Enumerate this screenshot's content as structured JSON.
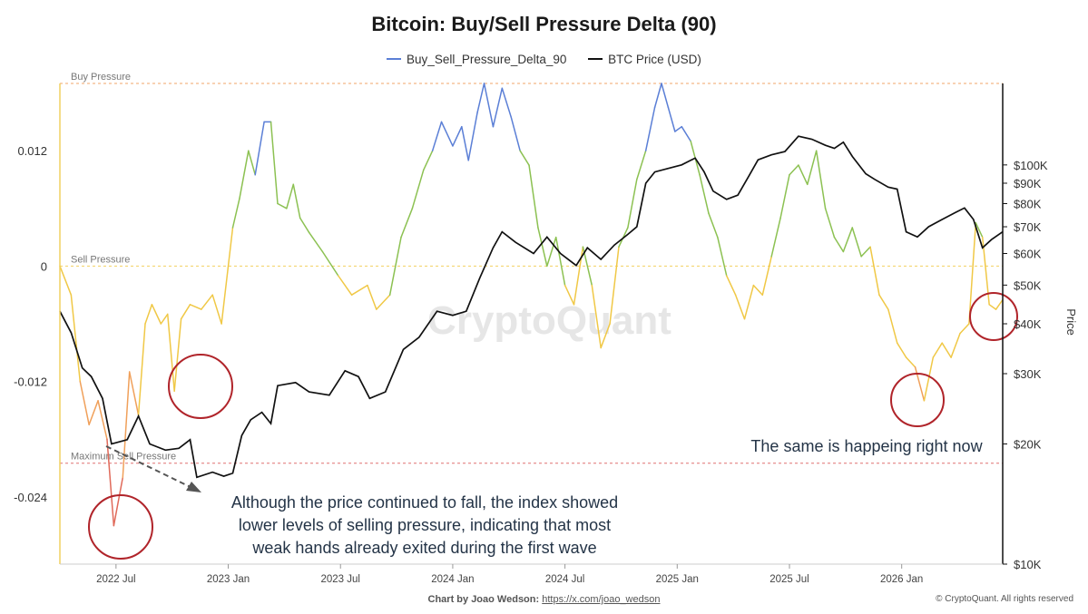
{
  "chart_data": {
    "type": "line",
    "title": "Bitcoin: Buy/Sell Pressure Delta (90)",
    "y_left": {
      "ticks": [
        0.012,
        0,
        -0.012,
        -0.024
      ],
      "tick_labels": [
        "0.012",
        "0",
        "-0.012",
        "-0.024"
      ],
      "range": [
        -0.031,
        0.019
      ]
    },
    "y_right": {
      "label": "Price",
      "scale": "log",
      "range": [
        10000,
        160000
      ],
      "ticks": [
        10000,
        20000,
        30000,
        40000,
        50000,
        60000,
        70000,
        80000,
        90000,
        100000
      ],
      "tick_labels": [
        "$10K",
        "$20K",
        "$30K",
        "$40K",
        "$50K",
        "$60K",
        "$70K",
        "$80K",
        "$90K",
        "$100K"
      ]
    },
    "x_ticks": [
      {
        "label": "2022 Jul",
        "t": 2022.5
      },
      {
        "label": "2023 Jan",
        "t": 2023.0
      },
      {
        "label": "2023 Jul",
        "t": 2023.5
      },
      {
        "label": "2024 Jan",
        "t": 2024.0
      },
      {
        "label": "2024 Jul",
        "t": 2024.5
      },
      {
        "label": "2025 Jan",
        "t": 2025.0
      },
      {
        "label": "2025 Jul",
        "t": 2025.5
      },
      {
        "label": "2026 Jan",
        "t": 2026.0
      }
    ],
    "x_range": [
      2022.25,
      2026.45
    ],
    "reference_lines": [
      {
        "label": "Buy Pressure",
        "value": 0.019
      },
      {
        "label": "Sell Pressure",
        "value": 0
      },
      {
        "label": "Maximum Sell Pressure",
        "value": -0.0205
      }
    ],
    "series": [
      {
        "name": "Buy_Sell_Pressure_Delta_90",
        "color": "#5b7fd6",
        "axis": "left",
        "points": [
          [
            2022.25,
            0
          ],
          [
            2022.3,
            -0.003
          ],
          [
            2022.34,
            -0.012
          ],
          [
            2022.38,
            -0.0165
          ],
          [
            2022.42,
            -0.014
          ],
          [
            2022.46,
            -0.018
          ],
          [
            2022.49,
            -0.027
          ],
          [
            2022.53,
            -0.022
          ],
          [
            2022.56,
            -0.011
          ],
          [
            2022.6,
            -0.0155
          ],
          [
            2022.63,
            -0.006
          ],
          [
            2022.66,
            -0.004
          ],
          [
            2022.7,
            -0.006
          ],
          [
            2022.73,
            -0.005
          ],
          [
            2022.76,
            -0.013
          ],
          [
            2022.79,
            -0.0055
          ],
          [
            2022.83,
            -0.004
          ],
          [
            2022.88,
            -0.0045
          ],
          [
            2022.93,
            -0.003
          ],
          [
            2022.97,
            -0.006
          ],
          [
            2023.02,
            0.004
          ],
          [
            2023.05,
            0.007
          ],
          [
            2023.09,
            0.012
          ],
          [
            2023.12,
            0.0095
          ],
          [
            2023.16,
            0.015
          ],
          [
            2023.19,
            0.015
          ],
          [
            2023.22,
            0.0065
          ],
          [
            2023.26,
            0.006
          ],
          [
            2023.29,
            0.0085
          ],
          [
            2023.32,
            0.005
          ],
          [
            2023.36,
            0.0035
          ],
          [
            2023.42,
            0.0015
          ],
          [
            2023.49,
            -0.001
          ],
          [
            2023.55,
            -0.003
          ],
          [
            2023.62,
            -0.002
          ],
          [
            2023.66,
            -0.0045
          ],
          [
            2023.72,
            -0.003
          ],
          [
            2023.77,
            0.003
          ],
          [
            2023.82,
            0.006
          ],
          [
            2023.87,
            0.01
          ],
          [
            2023.91,
            0.012
          ],
          [
            2023.95,
            0.015
          ],
          [
            2024.0,
            0.0125
          ],
          [
            2024.04,
            0.0145
          ],
          [
            2024.07,
            0.011
          ],
          [
            2024.11,
            0.016
          ],
          [
            2024.14,
            0.019
          ],
          [
            2024.18,
            0.0145
          ],
          [
            2024.22,
            0.0185
          ],
          [
            2024.26,
            0.0155
          ],
          [
            2024.3,
            0.012
          ],
          [
            2024.34,
            0.0105
          ],
          [
            2024.38,
            0.004
          ],
          [
            2024.42,
            0
          ],
          [
            2024.46,
            0.003
          ],
          [
            2024.5,
            -0.002
          ],
          [
            2024.54,
            -0.004
          ],
          [
            2024.58,
            0.002
          ],
          [
            2024.62,
            -0.002
          ],
          [
            2024.66,
            -0.0085
          ],
          [
            2024.7,
            -0.006
          ],
          [
            2024.74,
            0.002
          ],
          [
            2024.78,
            0.004
          ],
          [
            2024.82,
            0.009
          ],
          [
            2024.86,
            0.012
          ],
          [
            2024.9,
            0.0165
          ],
          [
            2024.93,
            0.019
          ],
          [
            2024.96,
            0.0165
          ],
          [
            2024.99,
            0.014
          ],
          [
            2025.02,
            0.0145
          ],
          [
            2025.06,
            0.013
          ],
          [
            2025.1,
            0.0095
          ],
          [
            2025.14,
            0.0055
          ],
          [
            2025.18,
            0.003
          ],
          [
            2025.22,
            -0.001
          ],
          [
            2025.26,
            -0.003
          ],
          [
            2025.3,
            -0.0055
          ],
          [
            2025.34,
            -0.002
          ],
          [
            2025.38,
            -0.003
          ],
          [
            2025.42,
            0.001
          ],
          [
            2025.46,
            0.005
          ],
          [
            2025.5,
            0.0095
          ],
          [
            2025.54,
            0.0105
          ],
          [
            2025.58,
            0.0085
          ],
          [
            2025.62,
            0.012
          ],
          [
            2025.66,
            0.006
          ],
          [
            2025.7,
            0.003
          ],
          [
            2025.74,
            0.0015
          ],
          [
            2025.78,
            0.004
          ],
          [
            2025.82,
            0.001
          ],
          [
            2025.86,
            0.002
          ],
          [
            2025.9,
            -0.003
          ],
          [
            2025.94,
            -0.0045
          ],
          [
            2025.98,
            -0.008
          ],
          [
            2026.02,
            -0.0095
          ],
          [
            2026.06,
            -0.0105
          ],
          [
            2026.1,
            -0.014
          ],
          [
            2026.14,
            -0.0095
          ],
          [
            2026.18,
            -0.008
          ],
          [
            2026.22,
            -0.0095
          ],
          [
            2026.26,
            -0.007
          ],
          [
            2026.3,
            -0.006
          ],
          [
            2026.33,
            0.0045
          ],
          [
            2026.36,
            0.003
          ],
          [
            2026.39,
            -0.004
          ],
          [
            2026.42,
            -0.0045
          ],
          [
            2026.45,
            -0.0035
          ]
        ]
      },
      {
        "name": "BTC Price (USD)",
        "color": "#111111",
        "axis": "right",
        "points": [
          [
            2022.25,
            43000
          ],
          [
            2022.3,
            38000
          ],
          [
            2022.35,
            31000
          ],
          [
            2022.39,
            29500
          ],
          [
            2022.44,
            26000
          ],
          [
            2022.48,
            20000
          ],
          [
            2022.55,
            20500
          ],
          [
            2022.6,
            23500
          ],
          [
            2022.65,
            20000
          ],
          [
            2022.72,
            19300
          ],
          [
            2022.78,
            19500
          ],
          [
            2022.83,
            20500
          ],
          [
            2022.86,
            16500
          ],
          [
            2022.93,
            17000
          ],
          [
            2022.98,
            16600
          ],
          [
            2023.02,
            16900
          ],
          [
            2023.06,
            21000
          ],
          [
            2023.1,
            23000
          ],
          [
            2023.15,
            24000
          ],
          [
            2023.19,
            22500
          ],
          [
            2023.22,
            28000
          ],
          [
            2023.3,
            28500
          ],
          [
            2023.36,
            27000
          ],
          [
            2023.45,
            26500
          ],
          [
            2023.52,
            30500
          ],
          [
            2023.58,
            29500
          ],
          [
            2023.63,
            26000
          ],
          [
            2023.7,
            27000
          ],
          [
            2023.78,
            34500
          ],
          [
            2023.85,
            37000
          ],
          [
            2023.93,
            43000
          ],
          [
            2024.0,
            42000
          ],
          [
            2024.06,
            43000
          ],
          [
            2024.12,
            52000
          ],
          [
            2024.18,
            62000
          ],
          [
            2024.22,
            68000
          ],
          [
            2024.28,
            64000
          ],
          [
            2024.36,
            60000
          ],
          [
            2024.42,
            66000
          ],
          [
            2024.48,
            60000
          ],
          [
            2024.55,
            56000
          ],
          [
            2024.6,
            62000
          ],
          [
            2024.66,
            58000
          ],
          [
            2024.72,
            63000
          ],
          [
            2024.78,
            67000
          ],
          [
            2024.82,
            70000
          ],
          [
            2024.86,
            90000
          ],
          [
            2024.9,
            96000
          ],
          [
            2024.96,
            98000
          ],
          [
            2025.02,
            100000
          ],
          [
            2025.08,
            104000
          ],
          [
            2025.12,
            96000
          ],
          [
            2025.16,
            86000
          ],
          [
            2025.22,
            82000
          ],
          [
            2025.27,
            84000
          ],
          [
            2025.32,
            94000
          ],
          [
            2025.36,
            103000
          ],
          [
            2025.42,
            106000
          ],
          [
            2025.48,
            108000
          ],
          [
            2025.54,
            118000
          ],
          [
            2025.6,
            116000
          ],
          [
            2025.66,
            112000
          ],
          [
            2025.7,
            110000
          ],
          [
            2025.74,
            114000
          ],
          [
            2025.78,
            105000
          ],
          [
            2025.84,
            95000
          ],
          [
            2025.88,
            92000
          ],
          [
            2025.94,
            88000
          ],
          [
            2025.98,
            87000
          ],
          [
            2026.02,
            68000
          ],
          [
            2026.07,
            66000
          ],
          [
            2026.12,
            70000
          ],
          [
            2026.18,
            73000
          ],
          [
            2026.24,
            76000
          ],
          [
            2026.28,
            78000
          ],
          [
            2026.32,
            73000
          ],
          [
            2026.36,
            62000
          ],
          [
            2026.4,
            65000
          ],
          [
            2026.45,
            68000
          ]
        ]
      }
    ],
    "annotations": [
      "Although the price continued to fall, the index showed",
      "lower levels of selling pressure, indicating that most",
      "weak hands already exited during the first wave",
      "The same is happeing right now"
    ],
    "watermark": "CryptoQuant",
    "grid": false,
    "legend": "top-center"
  },
  "footer": {
    "credit_label": "Chart by Joao Wedson:",
    "credit_link": "https://x.com/joao_wedson",
    "copyright": "© CryptoQuant. All rights reserved"
  }
}
